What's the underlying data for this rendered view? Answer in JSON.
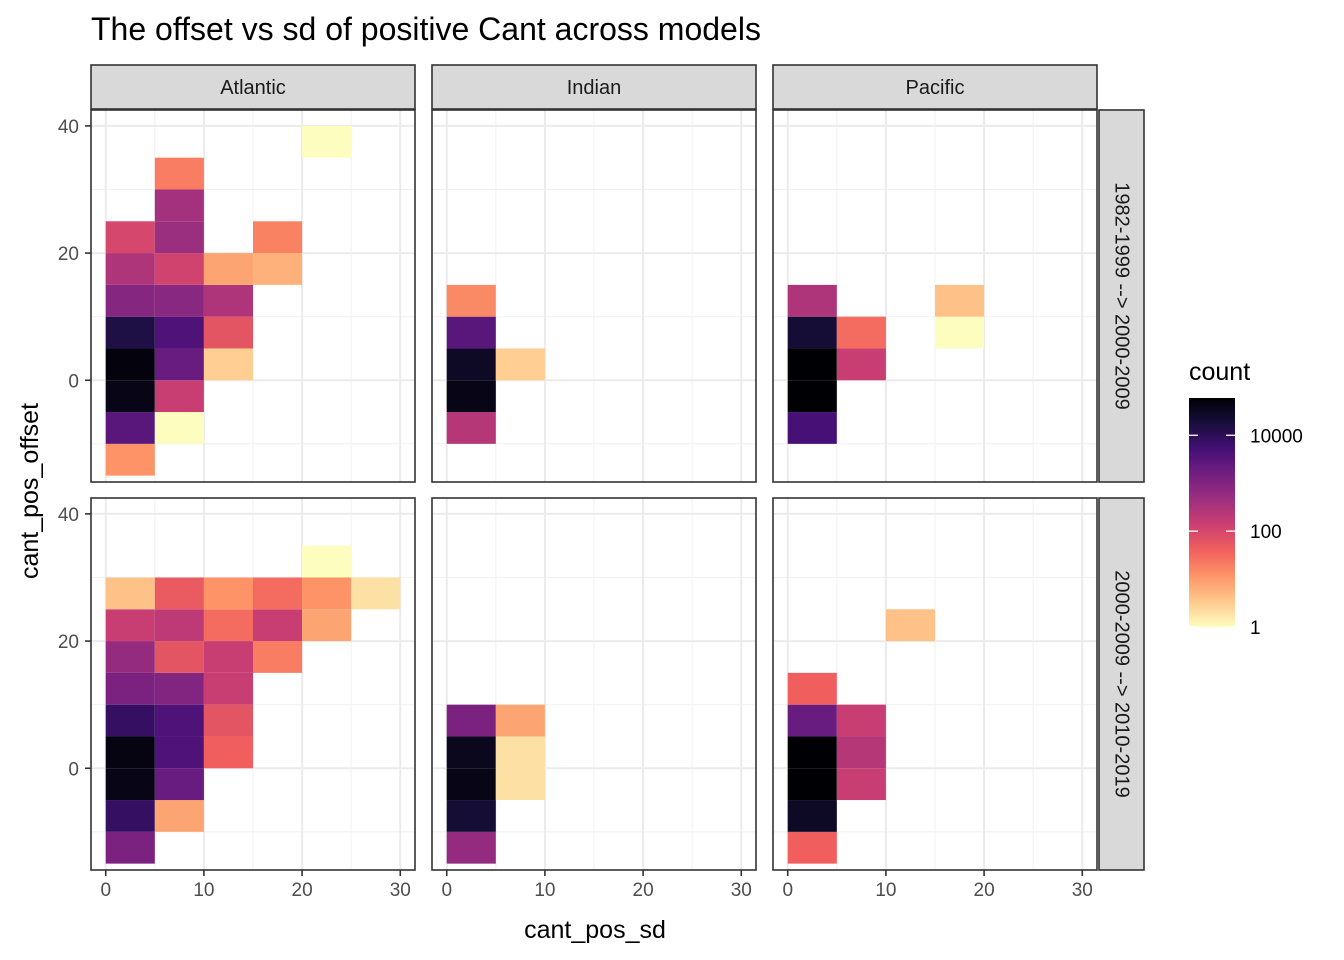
{
  "chart_data": {
    "type": "heatmap",
    "title": "The offset vs sd of positive Cant across models",
    "xlabel": "cant_pos_sd",
    "ylabel": "cant_pos_offset",
    "xlim": [
      -1.5,
      31.5
    ],
    "ylim": [
      -16,
      42.5
    ],
    "x_ticks": [
      0,
      10,
      20,
      30
    ],
    "y_ticks": [
      0,
      20,
      40
    ],
    "binwidth": 5,
    "columns": [
      "Atlantic",
      "Indian",
      "Pacific"
    ],
    "rows": [
      "1982-1999 --> 2000-2009",
      "2000-2009 --> 2010-2019"
    ],
    "legend": {
      "title": "count",
      "scale": "log10",
      "range": [
        1,
        60000
      ],
      "ticks": [
        {
          "value": 1,
          "label": "1"
        },
        {
          "value": 100,
          "label": "100"
        },
        {
          "value": 10000,
          "label": "10000"
        }
      ],
      "colors": [
        "#FCFDBF",
        "#FEC98D",
        "#FD9567",
        "#F1605D",
        "#CD4071",
        "#9E2F7F",
        "#721F81",
        "#440F76",
        "#180F3D",
        "#000004"
      ]
    },
    "panels": [
      {
        "col": "Atlantic",
        "row": "1982-1999 --> 2000-2009",
        "cells": [
          {
            "x": 0,
            "y": -15,
            "count": 12
          },
          {
            "x": 0,
            "y": -10,
            "count": 3000
          },
          {
            "x": 0,
            "y": -5,
            "count": 40000
          },
          {
            "x": 0,
            "y": 0,
            "count": 50000
          },
          {
            "x": 0,
            "y": 5,
            "count": 15000
          },
          {
            "x": 0,
            "y": 10,
            "count": 900
          },
          {
            "x": 0,
            "y": 15,
            "count": 300
          },
          {
            "x": 0,
            "y": 20,
            "count": 100
          },
          {
            "x": 5,
            "y": -10,
            "count": 1
          },
          {
            "x": 5,
            "y": -5,
            "count": 150
          },
          {
            "x": 5,
            "y": 0,
            "count": 2000
          },
          {
            "x": 5,
            "y": 5,
            "count": 4000
          },
          {
            "x": 5,
            "y": 10,
            "count": 800
          },
          {
            "x": 5,
            "y": 15,
            "count": 120
          },
          {
            "x": 5,
            "y": 20,
            "count": 500
          },
          {
            "x": 5,
            "y": 25,
            "count": 400
          },
          {
            "x": 5,
            "y": 30,
            "count": 20
          },
          {
            "x": 10,
            "y": 0,
            "count": 3
          },
          {
            "x": 10,
            "y": 5,
            "count": 60
          },
          {
            "x": 10,
            "y": 10,
            "count": 300
          },
          {
            "x": 10,
            "y": 15,
            "count": 8
          },
          {
            "x": 15,
            "y": 15,
            "count": 6
          },
          {
            "x": 15,
            "y": 20,
            "count": 18
          },
          {
            "x": 20,
            "y": 35,
            "count": 1
          }
        ]
      },
      {
        "col": "Indian",
        "row": "1982-1999 --> 2000-2009",
        "cells": [
          {
            "x": 0,
            "y": -10,
            "count": 250
          },
          {
            "x": 0,
            "y": -5,
            "count": 40000
          },
          {
            "x": 0,
            "y": 0,
            "count": 30000
          },
          {
            "x": 0,
            "y": 5,
            "count": 3000
          },
          {
            "x": 0,
            "y": 10,
            "count": 15
          },
          {
            "x": 5,
            "y": 0,
            "count": 3
          }
        ]
      },
      {
        "col": "Pacific",
        "row": "1982-1999 --> 2000-2009",
        "cells": [
          {
            "x": 0,
            "y": -10,
            "count": 5000
          },
          {
            "x": 0,
            "y": -5,
            "count": 60000
          },
          {
            "x": 0,
            "y": 0,
            "count": 60000
          },
          {
            "x": 0,
            "y": 5,
            "count": 20000
          },
          {
            "x": 0,
            "y": 10,
            "count": 300
          },
          {
            "x": 5,
            "y": 0,
            "count": 150
          },
          {
            "x": 5,
            "y": 5,
            "count": 30
          },
          {
            "x": 15,
            "y": 5,
            "count": 1
          },
          {
            "x": 15,
            "y": 10,
            "count": 4
          }
        ]
      },
      {
        "col": "Atlantic",
        "row": "2000-2009 --> 2010-2019",
        "cells": [
          {
            "x": 0,
            "y": -15,
            "count": 1200
          },
          {
            "x": 0,
            "y": -10,
            "count": 8000
          },
          {
            "x": 0,
            "y": -5,
            "count": 40000
          },
          {
            "x": 0,
            "y": 0,
            "count": 45000
          },
          {
            "x": 0,
            "y": 5,
            "count": 8000
          },
          {
            "x": 0,
            "y": 10,
            "count": 1200
          },
          {
            "x": 0,
            "y": 15,
            "count": 600
          },
          {
            "x": 0,
            "y": 20,
            "count": 150
          },
          {
            "x": 0,
            "y": 25,
            "count": 4
          },
          {
            "x": 5,
            "y": -10,
            "count": 8
          },
          {
            "x": 5,
            "y": -5,
            "count": 2000
          },
          {
            "x": 5,
            "y": 0,
            "count": 4000
          },
          {
            "x": 5,
            "y": 5,
            "count": 4000
          },
          {
            "x": 5,
            "y": 10,
            "count": 1000
          },
          {
            "x": 5,
            "y": 15,
            "count": 60
          },
          {
            "x": 5,
            "y": 20,
            "count": 200
          },
          {
            "x": 5,
            "y": 25,
            "count": 50
          },
          {
            "x": 10,
            "y": 0,
            "count": 40
          },
          {
            "x": 10,
            "y": 5,
            "count": 60
          },
          {
            "x": 10,
            "y": 10,
            "count": 150
          },
          {
            "x": 10,
            "y": 15,
            "count": 150
          },
          {
            "x": 10,
            "y": 20,
            "count": 30
          },
          {
            "x": 10,
            "y": 25,
            "count": 12
          },
          {
            "x": 15,
            "y": 15,
            "count": 20
          },
          {
            "x": 15,
            "y": 20,
            "count": 150
          },
          {
            "x": 15,
            "y": 25,
            "count": 30
          },
          {
            "x": 20,
            "y": 20,
            "count": 8
          },
          {
            "x": 20,
            "y": 25,
            "count": 12
          },
          {
            "x": 20,
            "y": 30,
            "count": 1
          },
          {
            "x": 25,
            "y": 25,
            "count": 2
          }
        ]
      },
      {
        "col": "Indian",
        "row": "2000-2009 --> 2010-2019",
        "cells": [
          {
            "x": 0,
            "y": -15,
            "count": 600
          },
          {
            "x": 0,
            "y": -10,
            "count": 20000
          },
          {
            "x": 0,
            "y": -5,
            "count": 40000
          },
          {
            "x": 0,
            "y": 0,
            "count": 35000
          },
          {
            "x": 0,
            "y": 5,
            "count": 1200
          },
          {
            "x": 5,
            "y": -5,
            "count": 2
          },
          {
            "x": 5,
            "y": 0,
            "count": 2
          },
          {
            "x": 5,
            "y": 5,
            "count": 8
          }
        ]
      },
      {
        "col": "Pacific",
        "row": "2000-2009 --> 2010-2019",
        "cells": [
          {
            "x": 0,
            "y": -15,
            "count": 40
          },
          {
            "x": 0,
            "y": -10,
            "count": 30000
          },
          {
            "x": 0,
            "y": -5,
            "count": 60000
          },
          {
            "x": 0,
            "y": 0,
            "count": 60000
          },
          {
            "x": 0,
            "y": 5,
            "count": 2000
          },
          {
            "x": 0,
            "y": 10,
            "count": 40
          },
          {
            "x": 5,
            "y": -5,
            "count": 150
          },
          {
            "x": 5,
            "y": 0,
            "count": 250
          },
          {
            "x": 5,
            "y": 5,
            "count": 150
          },
          {
            "x": 10,
            "y": 20,
            "count": 4
          }
        ]
      }
    ]
  }
}
